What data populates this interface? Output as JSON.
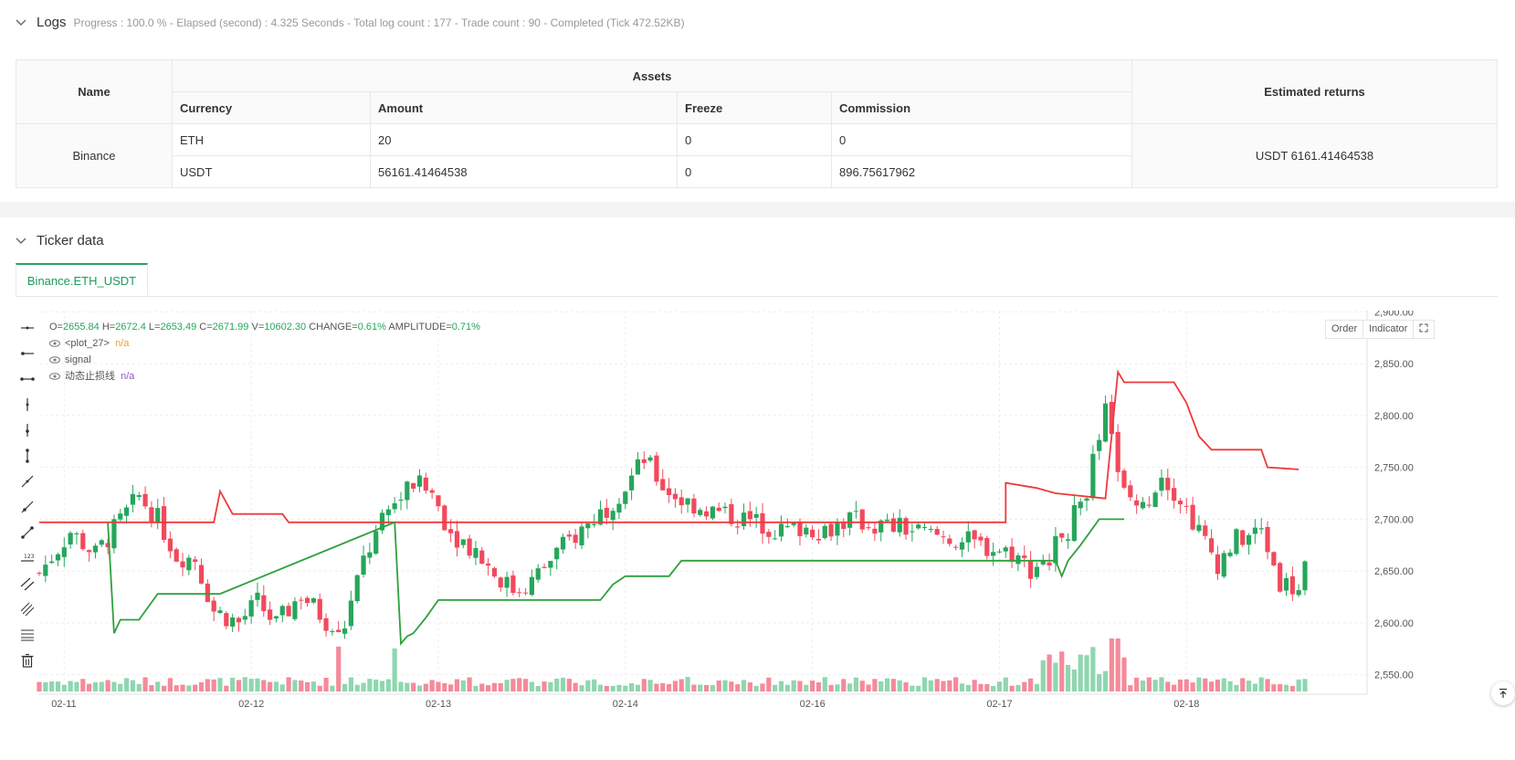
{
  "logs": {
    "title": "Logs",
    "status": "Progress : 100.0 % - Elapsed (second) : 4.325  Seconds - Total log count : 177 - Trade count : 90 - Completed (Tick 472.52KB)"
  },
  "assets_table": {
    "name_header": "Name",
    "assets_header": "Assets",
    "returns_header": "Estimated returns",
    "col_currency": "Currency",
    "col_amount": "Amount",
    "col_freeze": "Freeze",
    "col_commission": "Commission",
    "exchange": "Binance",
    "rows": [
      {
        "currency": "ETH",
        "amount": "20",
        "freeze": "0",
        "commission": "0"
      },
      {
        "currency": "USDT",
        "amount": "56161.41464538",
        "freeze": "0",
        "commission": "896.75617962"
      }
    ],
    "estimated_returns": "USDT 6161.41464538"
  },
  "ticker": {
    "title": "Ticker data",
    "tab_label": "Binance.ETH_USDT"
  },
  "legend": {
    "o_label": "O=",
    "o_value": "2655.84",
    "h_label": "H=",
    "h_value": "2672.4",
    "l_label": "L=",
    "l_value": "2653.49",
    "c_label": "C=",
    "c_value": "2671.99",
    "v_label": "V=",
    "v_value": "10602.30",
    "change_label": "CHANGE=",
    "change_value": "0.61%",
    "amp_label": "AMPLITUDE=",
    "amp_value": "0.71%",
    "plot27": "<plot_27>",
    "plot27_value": "n/a",
    "signal": "signal",
    "stop": "动态止损线",
    "stop_value": "n/a"
  },
  "chart_buttons": {
    "order": "Order",
    "indicator": "Indicator"
  },
  "colors": {
    "up": "#26a65b",
    "down": "#f2495c",
    "upper_line": "#f03a3a",
    "lower_line": "#2ea03a"
  },
  "chart_data": {
    "type": "candlestick",
    "y_ticks": [
      "2,900.00",
      "2,850.00",
      "2,800.00",
      "2,750.00",
      "2,700.00",
      "2,650.00",
      "2,600.00",
      "2,550.00"
    ],
    "ylim": [
      2540,
      2910
    ],
    "x_ticks": [
      "02-11",
      "02-12",
      "02-13",
      "02-14",
      "02-16",
      "02-17",
      "02-18"
    ],
    "x_tick_positions": [
      4,
      34,
      64,
      94,
      124,
      154,
      184
    ],
    "bar_count": 204,
    "close_path": [
      [
        0,
        2648
      ],
      [
        5,
        2688
      ],
      [
        9,
        2666
      ],
      [
        12,
        2690
      ],
      [
        16,
        2722
      ],
      [
        19,
        2700
      ],
      [
        22,
        2665
      ],
      [
        25,
        2662
      ],
      [
        28,
        2612
      ],
      [
        32,
        2600
      ],
      [
        35,
        2620
      ],
      [
        38,
        2598
      ],
      [
        42,
        2628
      ],
      [
        46,
        2602
      ],
      [
        49,
        2598
      ],
      [
        52,
        2660
      ],
      [
        56,
        2708
      ],
      [
        60,
        2735
      ],
      [
        63,
        2725
      ],
      [
        66,
        2688
      ],
      [
        70,
        2670
      ],
      [
        73,
        2648
      ],
      [
        76,
        2632
      ],
      [
        79,
        2640
      ],
      [
        83,
        2668
      ],
      [
        87,
        2690
      ],
      [
        91,
        2712
      ],
      [
        94,
        2732
      ],
      [
        97,
        2758
      ],
      [
        100,
        2732
      ],
      [
        103,
        2718
      ],
      [
        106,
        2712
      ],
      [
        109,
        2706
      ],
      [
        113,
        2700
      ],
      [
        116,
        2695
      ],
      [
        119,
        2688
      ],
      [
        122,
        2692
      ],
      [
        126,
        2690
      ],
      [
        130,
        2700
      ],
      [
        134,
        2694
      ],
      [
        138,
        2692
      ],
      [
        142,
        2686
      ],
      [
        146,
        2682
      ],
      [
        150,
        2676
      ],
      [
        153,
        2672
      ],
      [
        156,
        2668
      ],
      [
        159,
        2652
      ],
      [
        162,
        2666
      ],
      [
        165,
        2690
      ],
      [
        168,
        2730
      ],
      [
        171,
        2802
      ],
      [
        174,
        2725
      ],
      [
        177,
        2710
      ],
      [
        180,
        2745
      ],
      [
        183,
        2720
      ],
      [
        186,
        2688
      ],
      [
        189,
        2658
      ],
      [
        192,
        2680
      ],
      [
        196,
        2688
      ],
      [
        199,
        2640
      ],
      [
        202,
        2632
      ],
      [
        204,
        2668
      ]
    ],
    "upper_line": [
      [
        0,
        2697
      ],
      [
        11,
        2697
      ],
      [
        11,
        2697
      ],
      [
        28,
        2697
      ],
      [
        29,
        2727
      ],
      [
        31,
        2705
      ],
      [
        39,
        2705
      ],
      [
        40,
        2697
      ],
      [
        57,
        2697
      ],
      [
        58,
        2697
      ],
      [
        79,
        2697
      ],
      [
        155,
        2697
      ],
      [
        155,
        2735
      ],
      [
        160,
        2730
      ],
      [
        163,
        2725
      ],
      [
        171,
        2720
      ],
      [
        173,
        2842
      ],
      [
        174,
        2832
      ],
      [
        182,
        2832
      ],
      [
        184,
        2812
      ],
      [
        186,
        2780
      ],
      [
        188,
        2767
      ],
      [
        196,
        2767
      ],
      [
        197,
        2750
      ],
      [
        202,
        2748
      ]
    ],
    "lower_line": [
      [
        11,
        2697
      ],
      [
        12,
        2590
      ],
      [
        13,
        2603
      ],
      [
        16,
        2603
      ],
      [
        19,
        2628
      ],
      [
        25,
        2628
      ],
      [
        29,
        2628
      ],
      [
        57,
        2697
      ],
      [
        58,
        2580
      ],
      [
        59,
        2587
      ],
      [
        60,
        2590
      ],
      [
        62,
        2605
      ],
      [
        64,
        2622
      ],
      [
        90,
        2622
      ],
      [
        92,
        2637
      ],
      [
        94,
        2645
      ],
      [
        101,
        2645
      ],
      [
        103,
        2660
      ],
      [
        125,
        2660
      ],
      [
        155,
        2660
      ],
      [
        163,
        2660
      ],
      [
        164,
        2645
      ],
      [
        165,
        2660
      ],
      [
        167,
        2675
      ],
      [
        170,
        2700
      ],
      [
        174,
        2700
      ],
      [
        174,
        2700
      ]
    ]
  }
}
